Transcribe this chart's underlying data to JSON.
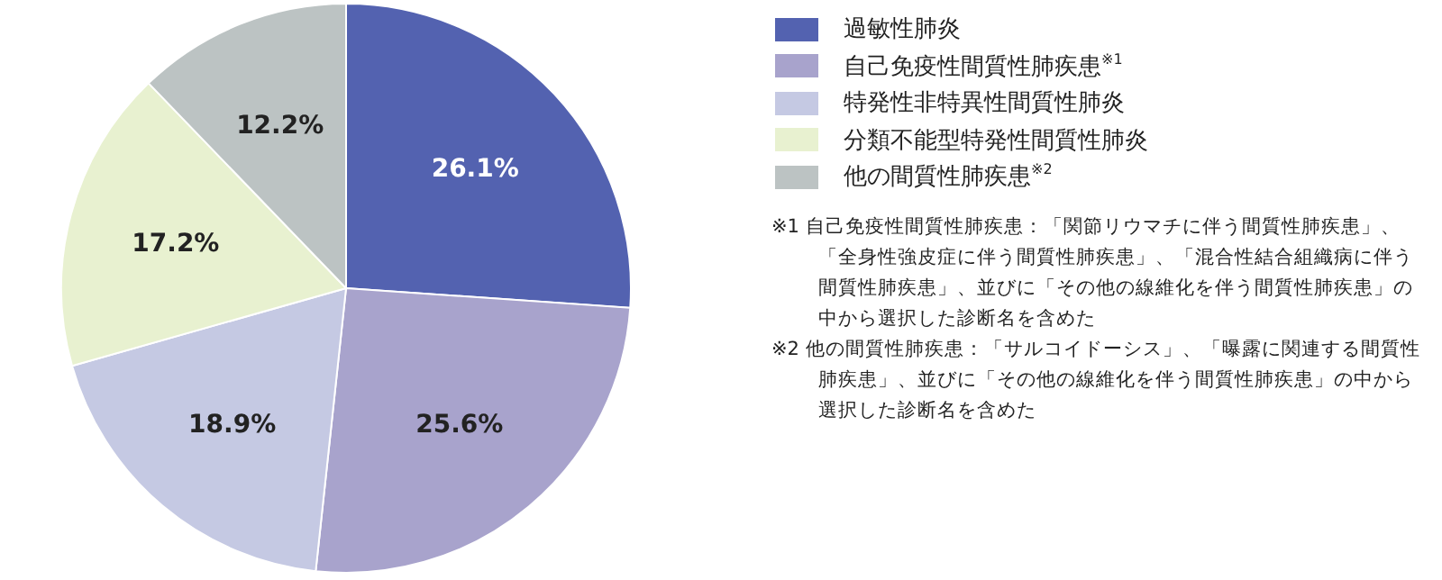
{
  "chart_data": {
    "type": "pie",
    "categories": [
      "過敏性肺炎",
      "自己免疫性間質性肺疾患$^{※1}$",
      "特発性非特異性間質性肺炎",
      "分類不能型特発性間質性肺炎",
      "他の間質性肺疾患$^{※2}$"
    ],
    "values": [
      26.1,
      25.6,
      18.9,
      17.2,
      12.2
    ],
    "colors": [
      "#5362b0",
      "#a8a3cc",
      "#c5c9e3",
      "#e8f1d0",
      "#bcc3c3"
    ],
    "value_labels": [
      "26.1%",
      "25.6%",
      "18.9%",
      "17.2%",
      "12.2%"
    ],
    "legend": "right",
    "annotations": [
      "※1 自己免疫性間質性肺疾患：「関節リウマチに伴う間質性肺疾患」、「全身性強皮症に伴う間質性肺疾患」、「混合性結合組織病に伴う間質性肺疾患」、並びに「その他の線維化を伴う間質性肺疾患」の中から選択した診断名を含めた",
      "※2 他の間質性肺疾患：「サルコイドーシス」、「曝露に関連する間質性肺疾患」、並びに「その他の線維化を伴う間質性肺疾患」の中から選択した診断名を含めた"
    ]
  }
}
